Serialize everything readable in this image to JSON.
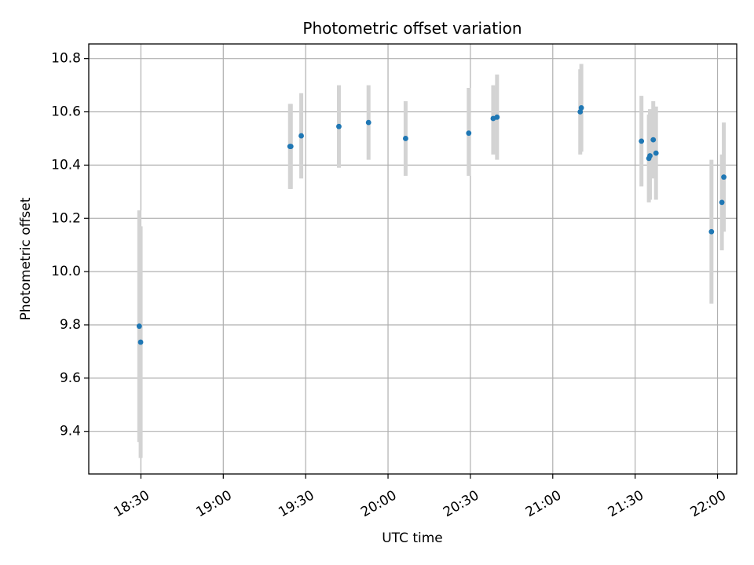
{
  "chart_data": {
    "type": "scatter",
    "title": "Photometric offset variation",
    "xlabel": "UTC time",
    "ylabel": "Photometric offset",
    "grid": true,
    "xlim_minutes": [
      1091,
      1327
    ],
    "ylim": [
      9.24,
      10.855
    ],
    "x_ticks": [
      {
        "minutes": 1110,
        "label": "18:30"
      },
      {
        "minutes": 1140,
        "label": "19:00"
      },
      {
        "minutes": 1170,
        "label": "19:30"
      },
      {
        "minutes": 1200,
        "label": "20:00"
      },
      {
        "minutes": 1230,
        "label": "20:30"
      },
      {
        "minutes": 1260,
        "label": "21:00"
      },
      {
        "minutes": 1290,
        "label": "21:30"
      },
      {
        "minutes": 1320,
        "label": "22:00"
      }
    ],
    "y_ticks": [
      {
        "value": 9.4,
        "label": "9.4"
      },
      {
        "value": 9.6,
        "label": "9.6"
      },
      {
        "value": 9.8,
        "label": "9.8"
      },
      {
        "value": 10.0,
        "label": "10.0"
      },
      {
        "value": 10.2,
        "label": "10.2"
      },
      {
        "value": 10.4,
        "label": "10.4"
      },
      {
        "value": 10.6,
        "label": "10.6"
      },
      {
        "value": 10.8,
        "label": "10.8"
      }
    ],
    "point_color": "#1f77b4",
    "errorbar_color": "#d3d3d3",
    "points": [
      {
        "time": "18:29.4",
        "minutes": 1109.4,
        "y": 9.795,
        "ylow": 9.36,
        "yhigh": 10.23
      },
      {
        "time": "18:29.9",
        "minutes": 1109.9,
        "y": 9.735,
        "ylow": 9.3,
        "yhigh": 10.17
      },
      {
        "time": "19:24.3",
        "minutes": 1164.3,
        "y": 10.47,
        "ylow": 10.31,
        "yhigh": 10.63
      },
      {
        "time": "19:24.6",
        "minutes": 1164.6,
        "y": 10.47,
        "ylow": 10.31,
        "yhigh": 10.63
      },
      {
        "time": "19:28.4",
        "minutes": 1168.4,
        "y": 10.51,
        "ylow": 10.35,
        "yhigh": 10.67
      },
      {
        "time": "19:42.1",
        "minutes": 1182.1,
        "y": 10.545,
        "ylow": 10.39,
        "yhigh": 10.7
      },
      {
        "time": "19:52.9",
        "minutes": 1192.9,
        "y": 10.56,
        "ylow": 10.42,
        "yhigh": 10.7
      },
      {
        "time": "20:06.4",
        "minutes": 1206.4,
        "y": 10.5,
        "ylow": 10.36,
        "yhigh": 10.64
      },
      {
        "time": "20:29.4",
        "minutes": 1229.4,
        "y": 10.52,
        "ylow": 10.36,
        "yhigh": 10.69
      },
      {
        "time": "20:38.3",
        "minutes": 1238.3,
        "y": 10.575,
        "ylow": 10.44,
        "yhigh": 10.7
      },
      {
        "time": "20:39.7",
        "minutes": 1239.7,
        "y": 10.58,
        "ylow": 10.42,
        "yhigh": 10.74
      },
      {
        "time": "21:10.0",
        "minutes": 1270.0,
        "y": 10.6,
        "ylow": 10.44,
        "yhigh": 10.76
      },
      {
        "time": "21:10.4",
        "minutes": 1270.4,
        "y": 10.615,
        "ylow": 10.45,
        "yhigh": 10.78
      },
      {
        "time": "21:32.3",
        "minutes": 1292.3,
        "y": 10.49,
        "ylow": 10.32,
        "yhigh": 10.66
      },
      {
        "time": "21:35.0",
        "minutes": 1295.0,
        "y": 10.425,
        "ylow": 10.26,
        "yhigh": 10.59
      },
      {
        "time": "21:35.4",
        "minutes": 1295.4,
        "y": 10.435,
        "ylow": 10.27,
        "yhigh": 10.61
      },
      {
        "time": "21:36.6",
        "minutes": 1296.6,
        "y": 10.495,
        "ylow": 10.35,
        "yhigh": 10.64
      },
      {
        "time": "21:37.6",
        "minutes": 1297.6,
        "y": 10.445,
        "ylow": 10.27,
        "yhigh": 10.62
      },
      {
        "time": "21:57.8",
        "minutes": 1317.8,
        "y": 10.15,
        "ylow": 9.88,
        "yhigh": 10.42
      },
      {
        "time": "22:01.6",
        "minutes": 1321.6,
        "y": 10.26,
        "ylow": 10.08,
        "yhigh": 10.44
      },
      {
        "time": "22:02.3",
        "minutes": 1322.3,
        "y": 10.355,
        "ylow": 10.15,
        "yhigh": 10.56
      }
    ]
  }
}
